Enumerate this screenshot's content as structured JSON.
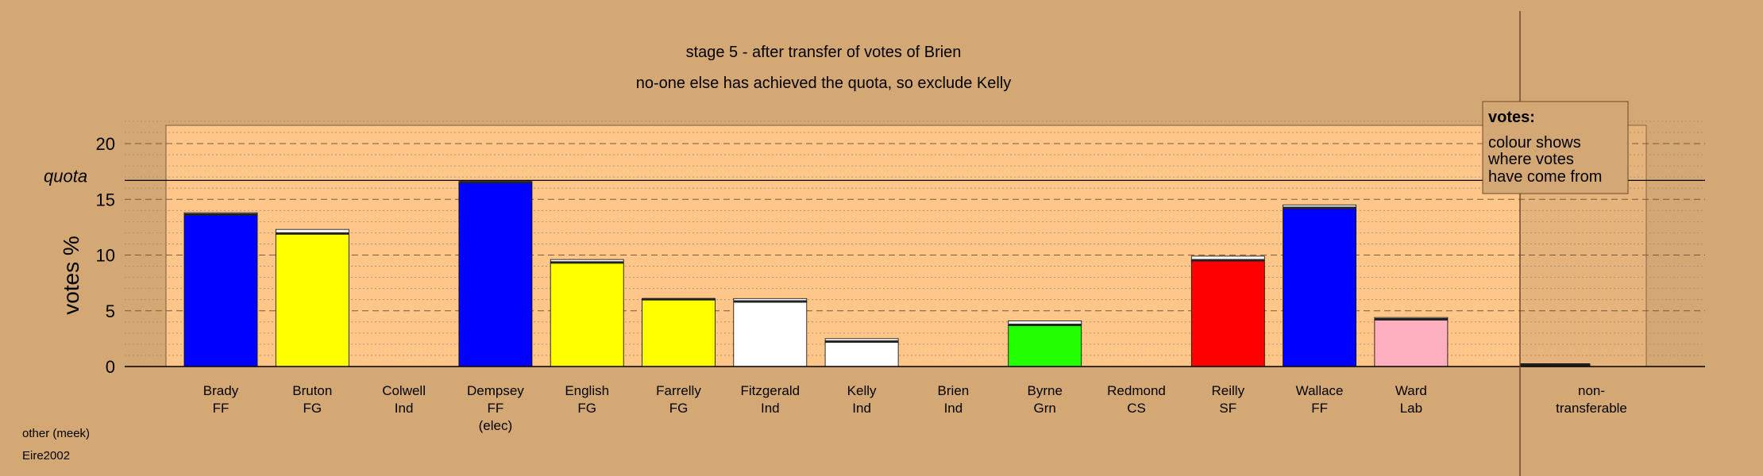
{
  "chart_data": {
    "type": "bar",
    "title": "stage 5 - after transfer of votes of Brien",
    "subtitle": "no-one else has achieved the quota, so exclude Kelly",
    "ylabel": "votes %",
    "xlabel": "",
    "ylim": [
      0,
      22
    ],
    "yticks": [
      0,
      5,
      10,
      15,
      20
    ],
    "quota": 16.7,
    "quota_label": "quota",
    "grid": true,
    "legend": {
      "title": "votes:",
      "lines": [
        "colour shows",
        "where votes",
        "have come from"
      ],
      "position": "top-right"
    },
    "candidates": [
      {
        "name": "Brady",
        "party": "FF",
        "note": "",
        "color": "#0000ff",
        "base": 13.6,
        "transfer": 0.2
      },
      {
        "name": "Bruton",
        "party": "FG",
        "note": "",
        "color": "#ffff00",
        "base": 11.9,
        "transfer": 0.4
      },
      {
        "name": "Colwell",
        "party": "Ind",
        "note": "",
        "color": "#ffffff",
        "base": 0,
        "transfer": 0
      },
      {
        "name": "Dempsey",
        "party": "FF",
        "note": "(elec)",
        "color": "#0000ff",
        "base": 16.5,
        "transfer": 0.1
      },
      {
        "name": "English",
        "party": "FG",
        "note": "",
        "color": "#ffff00",
        "base": 9.3,
        "transfer": 0.3
      },
      {
        "name": "Farrelly",
        "party": "FG",
        "note": "",
        "color": "#ffff00",
        "base": 6.0,
        "transfer": 0.1
      },
      {
        "name": "Fitzgerald",
        "party": "Ind",
        "note": "",
        "color": "#ffffff",
        "base": 5.8,
        "transfer": 0.3
      },
      {
        "name": "Kelly",
        "party": "Ind",
        "note": "",
        "color": "#ffffff",
        "base": 2.2,
        "transfer": 0.3
      },
      {
        "name": "Brien",
        "party": "Ind",
        "note": "",
        "color": "#ffffff",
        "base": 0,
        "transfer": 0
      },
      {
        "name": "Byrne",
        "party": "Grn",
        "note": "",
        "color": "#22ff00",
        "base": 3.7,
        "transfer": 0.4
      },
      {
        "name": "Redmond",
        "party": "CS",
        "note": "",
        "color": "#ffffff",
        "base": 0,
        "transfer": 0
      },
      {
        "name": "Reilly",
        "party": "SF",
        "note": "",
        "color": "#ff0000",
        "base": 9.5,
        "transfer": 0.4
      },
      {
        "name": "Wallace",
        "party": "FF",
        "note": "",
        "color": "#0000ff",
        "base": 14.2,
        "transfer": 0.3
      },
      {
        "name": "Ward",
        "party": "Lab",
        "note": "",
        "color": "#ffb0c0",
        "base": 4.2,
        "transfer": 0.2
      }
    ],
    "nontransferable": {
      "label_1": "non-",
      "label_2": "transferable",
      "value": 0.25
    }
  },
  "footer": {
    "line1": "other (meek)",
    "line2": "Eire2002"
  }
}
